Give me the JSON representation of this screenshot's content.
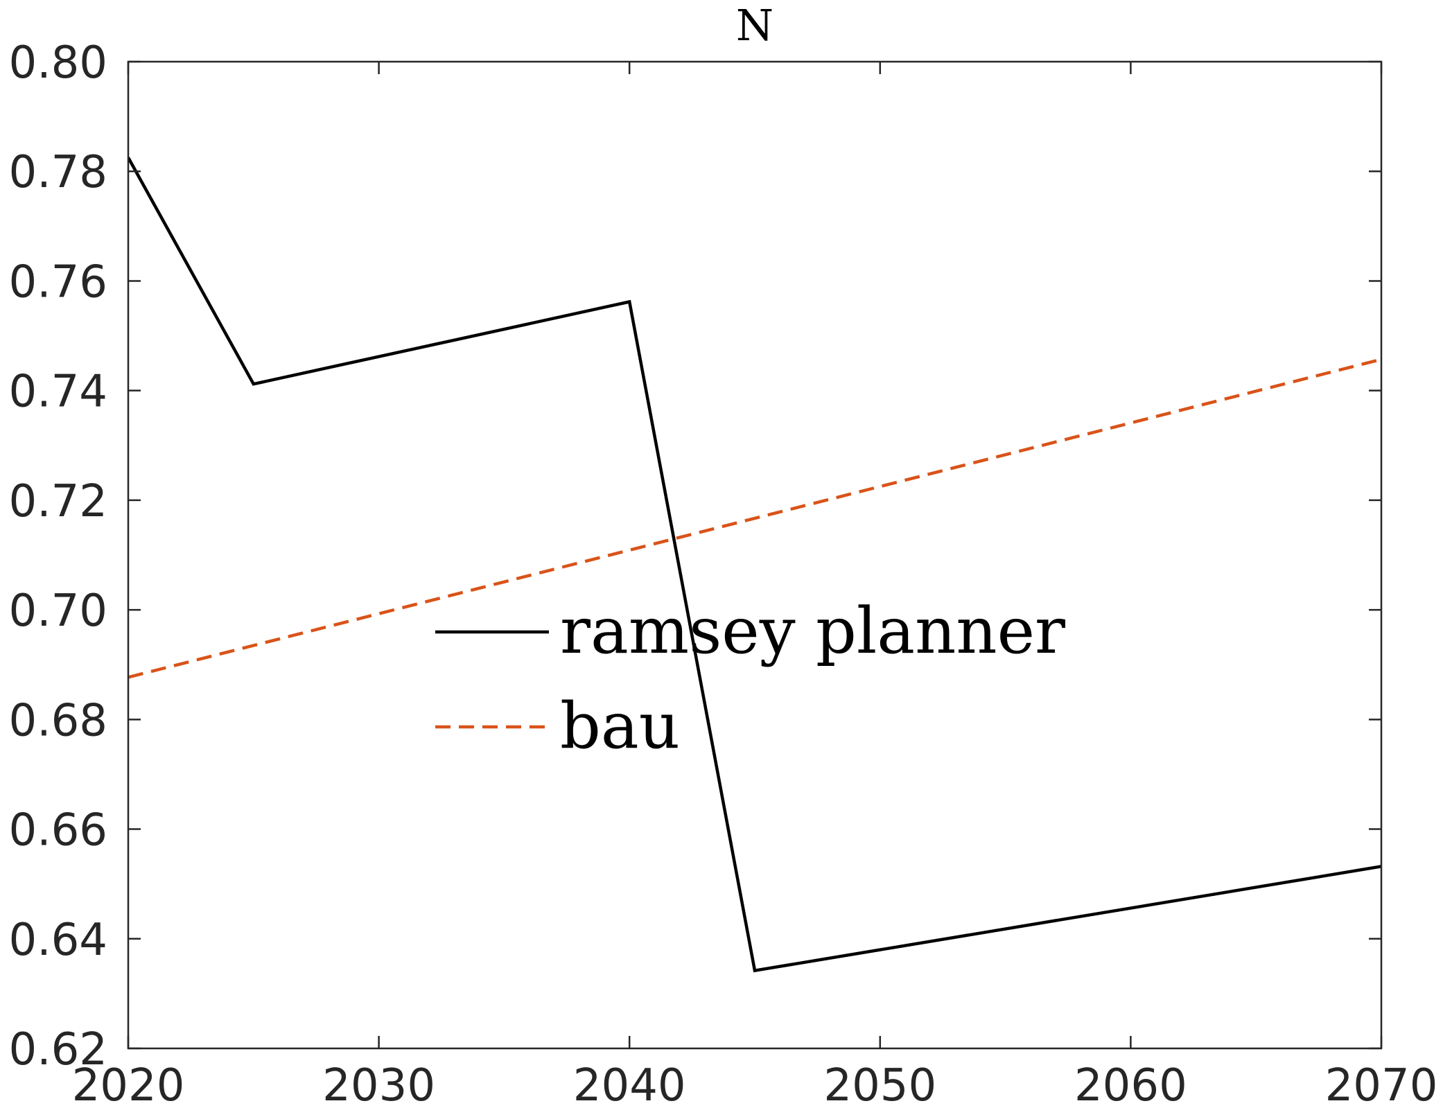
{
  "chart_data": {
    "type": "line",
    "title": "N",
    "xlabel": "",
    "ylabel": "",
    "xlim": [
      2020,
      2070
    ],
    "ylim": [
      0.62,
      0.8
    ],
    "xticks": [
      2020,
      2030,
      2040,
      2050,
      2060,
      2070
    ],
    "xtick_labels": [
      "2020",
      "2030",
      "2040",
      "2050",
      "2060",
      "2070"
    ],
    "yticks": [
      0.62,
      0.64,
      0.66,
      0.68,
      0.7,
      0.72,
      0.74,
      0.76,
      0.78,
      0.8
    ],
    "ytick_labels": [
      "0.62",
      "0.64",
      "0.66",
      "0.68",
      "0.70",
      "0.72",
      "0.74",
      "0.76",
      "0.78",
      "0.80"
    ],
    "grid": false,
    "legend": "center",
    "series": [
      {
        "name": "ramsey planner",
        "color": "#000000",
        "dash": "solid",
        "x": [
          2020,
          2025,
          2040,
          2045,
          2070
        ],
        "y": [
          0.7825,
          0.7412,
          0.7562,
          0.6342,
          0.6532
        ]
      },
      {
        "name": "bau",
        "color": "#D95319",
        "dash": "dashed",
        "x": [
          2020,
          2070
        ],
        "y": [
          0.6877,
          0.7457
        ]
      }
    ]
  }
}
